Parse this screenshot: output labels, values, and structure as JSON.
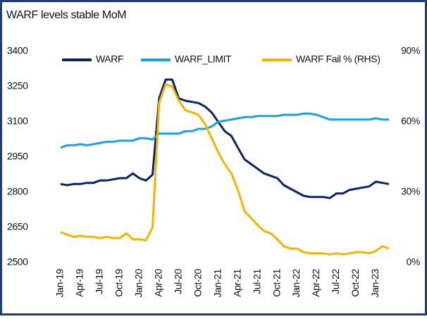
{
  "chart_data": {
    "type": "line",
    "title": "WARF levels stable MoM",
    "categories": [
      "Jan-19",
      null,
      null,
      "Apr-19",
      null,
      null,
      "Jul-19",
      null,
      null,
      "Oct-19",
      null,
      null,
      "Jan-20",
      null,
      null,
      "Apr-20",
      null,
      null,
      "Jul-20",
      null,
      null,
      "Oct-20",
      null,
      null,
      "Jan-21",
      null,
      null,
      "Apr-21",
      null,
      null,
      "Jul-21",
      null,
      null,
      "Oct-21",
      null,
      null,
      "Jan-22",
      null,
      null,
      "Apr-22",
      null,
      null,
      "Jul-22",
      null,
      null,
      "Oct-22",
      null,
      null,
      "Jan-23",
      null,
      null
    ],
    "series": [
      {
        "name": "WARF",
        "color": "#0b2265",
        "values": [
          2835,
          2830,
          2835,
          2835,
          2840,
          2840,
          2850,
          2850,
          2855,
          2860,
          2860,
          2880,
          2860,
          2850,
          2875,
          3200,
          3280,
          3280,
          3200,
          3190,
          3185,
          3180,
          3165,
          3140,
          3100,
          3060,
          3040,
          2990,
          2940,
          2920,
          2900,
          2880,
          2870,
          2860,
          2830,
          2815,
          2800,
          2785,
          2780,
          2780,
          2780,
          2775,
          2795,
          2795,
          2810,
          2815,
          2820,
          2825,
          2845,
          2840,
          2835
        ]
      },
      {
        "name": "WARF_LIMIT",
        "color": "#1ba1e2",
        "values": [
          2990,
          3000,
          3000,
          3005,
          3000,
          3005,
          3010,
          3015,
          3015,
          3020,
          3020,
          3020,
          3030,
          3030,
          3025,
          3050,
          3050,
          3050,
          3050,
          3060,
          3060,
          3070,
          3070,
          3080,
          3100,
          3105,
          3110,
          3115,
          3120,
          3120,
          3125,
          3125,
          3125,
          3125,
          3130,
          3130,
          3130,
          3135,
          3135,
          3130,
          3120,
          3110,
          3110,
          3110,
          3110,
          3110,
          3110,
          3110,
          3115,
          3110,
          3110
        ]
      },
      {
        "name": "WARF Fail % (RHS)",
        "color": "#f5b400",
        "axis": "y2",
        "values": [
          13,
          12,
          11,
          11.5,
          11,
          11,
          10.5,
          11,
          10.5,
          10.5,
          12.5,
          10,
          10,
          9.5,
          15,
          68,
          76,
          75,
          69,
          65,
          64,
          63,
          59,
          53,
          47,
          42,
          38,
          31,
          22,
          19,
          16,
          13.5,
          12.5,
          10,
          7,
          6,
          6,
          4.5,
          4,
          4,
          4,
          3.5,
          4,
          3.5,
          4,
          4.5,
          4.5,
          4,
          5,
          7,
          6
        ]
      }
    ],
    "ylim": [
      2500,
      3400
    ],
    "yticks": [
      2500,
      2650,
      2800,
      2950,
      3100,
      3250,
      3400
    ],
    "y2lim": [
      0,
      90
    ],
    "y2ticks": [
      {
        "value": 0,
        "label": "0%"
      },
      {
        "value": 30,
        "label": "30%"
      },
      {
        "value": 60,
        "label": "60%"
      },
      {
        "value": 90,
        "label": "90%"
      }
    ],
    "legend": "top"
  }
}
